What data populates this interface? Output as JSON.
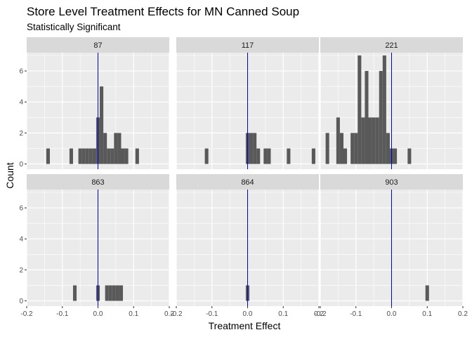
{
  "chart_data": {
    "type": "histogram",
    "title": "Store Level Treatment Effects for MN Canned Soup",
    "subtitle": "Statistically Significant",
    "xlabel": "Treatment Effect",
    "ylabel": "Count",
    "xlim": [
      -0.2,
      0.2
    ],
    "ylim": [
      0,
      7
    ],
    "x_ticks": [
      -0.2,
      -0.1,
      0.0,
      0.1,
      0.2
    ],
    "x_tick_labels": [
      "-0.2",
      "-0.1",
      "0.0",
      "0.1",
      "0.2"
    ],
    "y_ticks": [
      0,
      2,
      4,
      6
    ],
    "y_tick_labels": [
      "0",
      "2",
      "4",
      "6"
    ],
    "bin_width": 0.01,
    "reference_line_x": 0.0,
    "grid": true,
    "colors": {
      "panel_background": "#EBEBEB",
      "strip_background": "#D9D9D9",
      "grid": "#FFFFFF",
      "bar": "#595959",
      "reference_line": "#0000CD"
    },
    "panels": [
      {
        "label": "87",
        "bars": [
          {
            "x": -0.14,
            "count": 1
          },
          {
            "x": -0.075,
            "count": 1
          },
          {
            "x": -0.05,
            "count": 1
          },
          {
            "x": -0.04,
            "count": 1
          },
          {
            "x": -0.03,
            "count": 1
          },
          {
            "x": -0.02,
            "count": 1
          },
          {
            "x": -0.01,
            "count": 1
          },
          {
            "x": 0.0,
            "count": 3
          },
          {
            "x": 0.01,
            "count": 5
          },
          {
            "x": 0.02,
            "count": 2
          },
          {
            "x": 0.03,
            "count": 1
          },
          {
            "x": 0.04,
            "count": 1
          },
          {
            "x": 0.05,
            "count": 2
          },
          {
            "x": 0.06,
            "count": 2
          },
          {
            "x": 0.07,
            "count": 1
          },
          {
            "x": 0.08,
            "count": 1
          },
          {
            "x": 0.11,
            "count": 1
          }
        ]
      },
      {
        "label": "117",
        "bars": [
          {
            "x": -0.115,
            "count": 1
          },
          {
            "x": 0.0,
            "count": 2
          },
          {
            "x": 0.01,
            "count": 2
          },
          {
            "x": 0.02,
            "count": 2
          },
          {
            "x": 0.03,
            "count": 1
          },
          {
            "x": 0.05,
            "count": 1
          },
          {
            "x": 0.06,
            "count": 1
          },
          {
            "x": 0.115,
            "count": 1
          },
          {
            "x": 0.185,
            "count": 1
          }
        ]
      },
      {
        "label": "221",
        "bars": [
          {
            "x": -0.18,
            "count": 2
          },
          {
            "x": -0.15,
            "count": 3
          },
          {
            "x": -0.14,
            "count": 2
          },
          {
            "x": -0.13,
            "count": 1
          },
          {
            "x": -0.11,
            "count": 2
          },
          {
            "x": -0.1,
            "count": 2
          },
          {
            "x": -0.09,
            "count": 7
          },
          {
            "x": -0.08,
            "count": 3
          },
          {
            "x": -0.07,
            "count": 6
          },
          {
            "x": -0.06,
            "count": 3
          },
          {
            "x": -0.05,
            "count": 3
          },
          {
            "x": -0.04,
            "count": 3
          },
          {
            "x": -0.03,
            "count": 6
          },
          {
            "x": -0.02,
            "count": 7
          },
          {
            "x": -0.01,
            "count": 2
          },
          {
            "x": 0.0,
            "count": 1
          },
          {
            "x": 0.01,
            "count": 1
          },
          {
            "x": 0.05,
            "count": 1
          }
        ]
      },
      {
        "label": "863",
        "bars": [
          {
            "x": -0.065,
            "count": 1
          },
          {
            "x": 0.0,
            "count": 1
          },
          {
            "x": 0.025,
            "count": 1
          },
          {
            "x": 0.035,
            "count": 1
          },
          {
            "x": 0.045,
            "count": 1
          },
          {
            "x": 0.055,
            "count": 1
          },
          {
            "x": 0.065,
            "count": 1
          }
        ]
      },
      {
        "label": "864",
        "bars": [
          {
            "x": 0.0,
            "count": 1
          }
        ]
      },
      {
        "label": "903",
        "bars": [
          {
            "x": 0.1,
            "count": 1
          }
        ]
      }
    ]
  }
}
